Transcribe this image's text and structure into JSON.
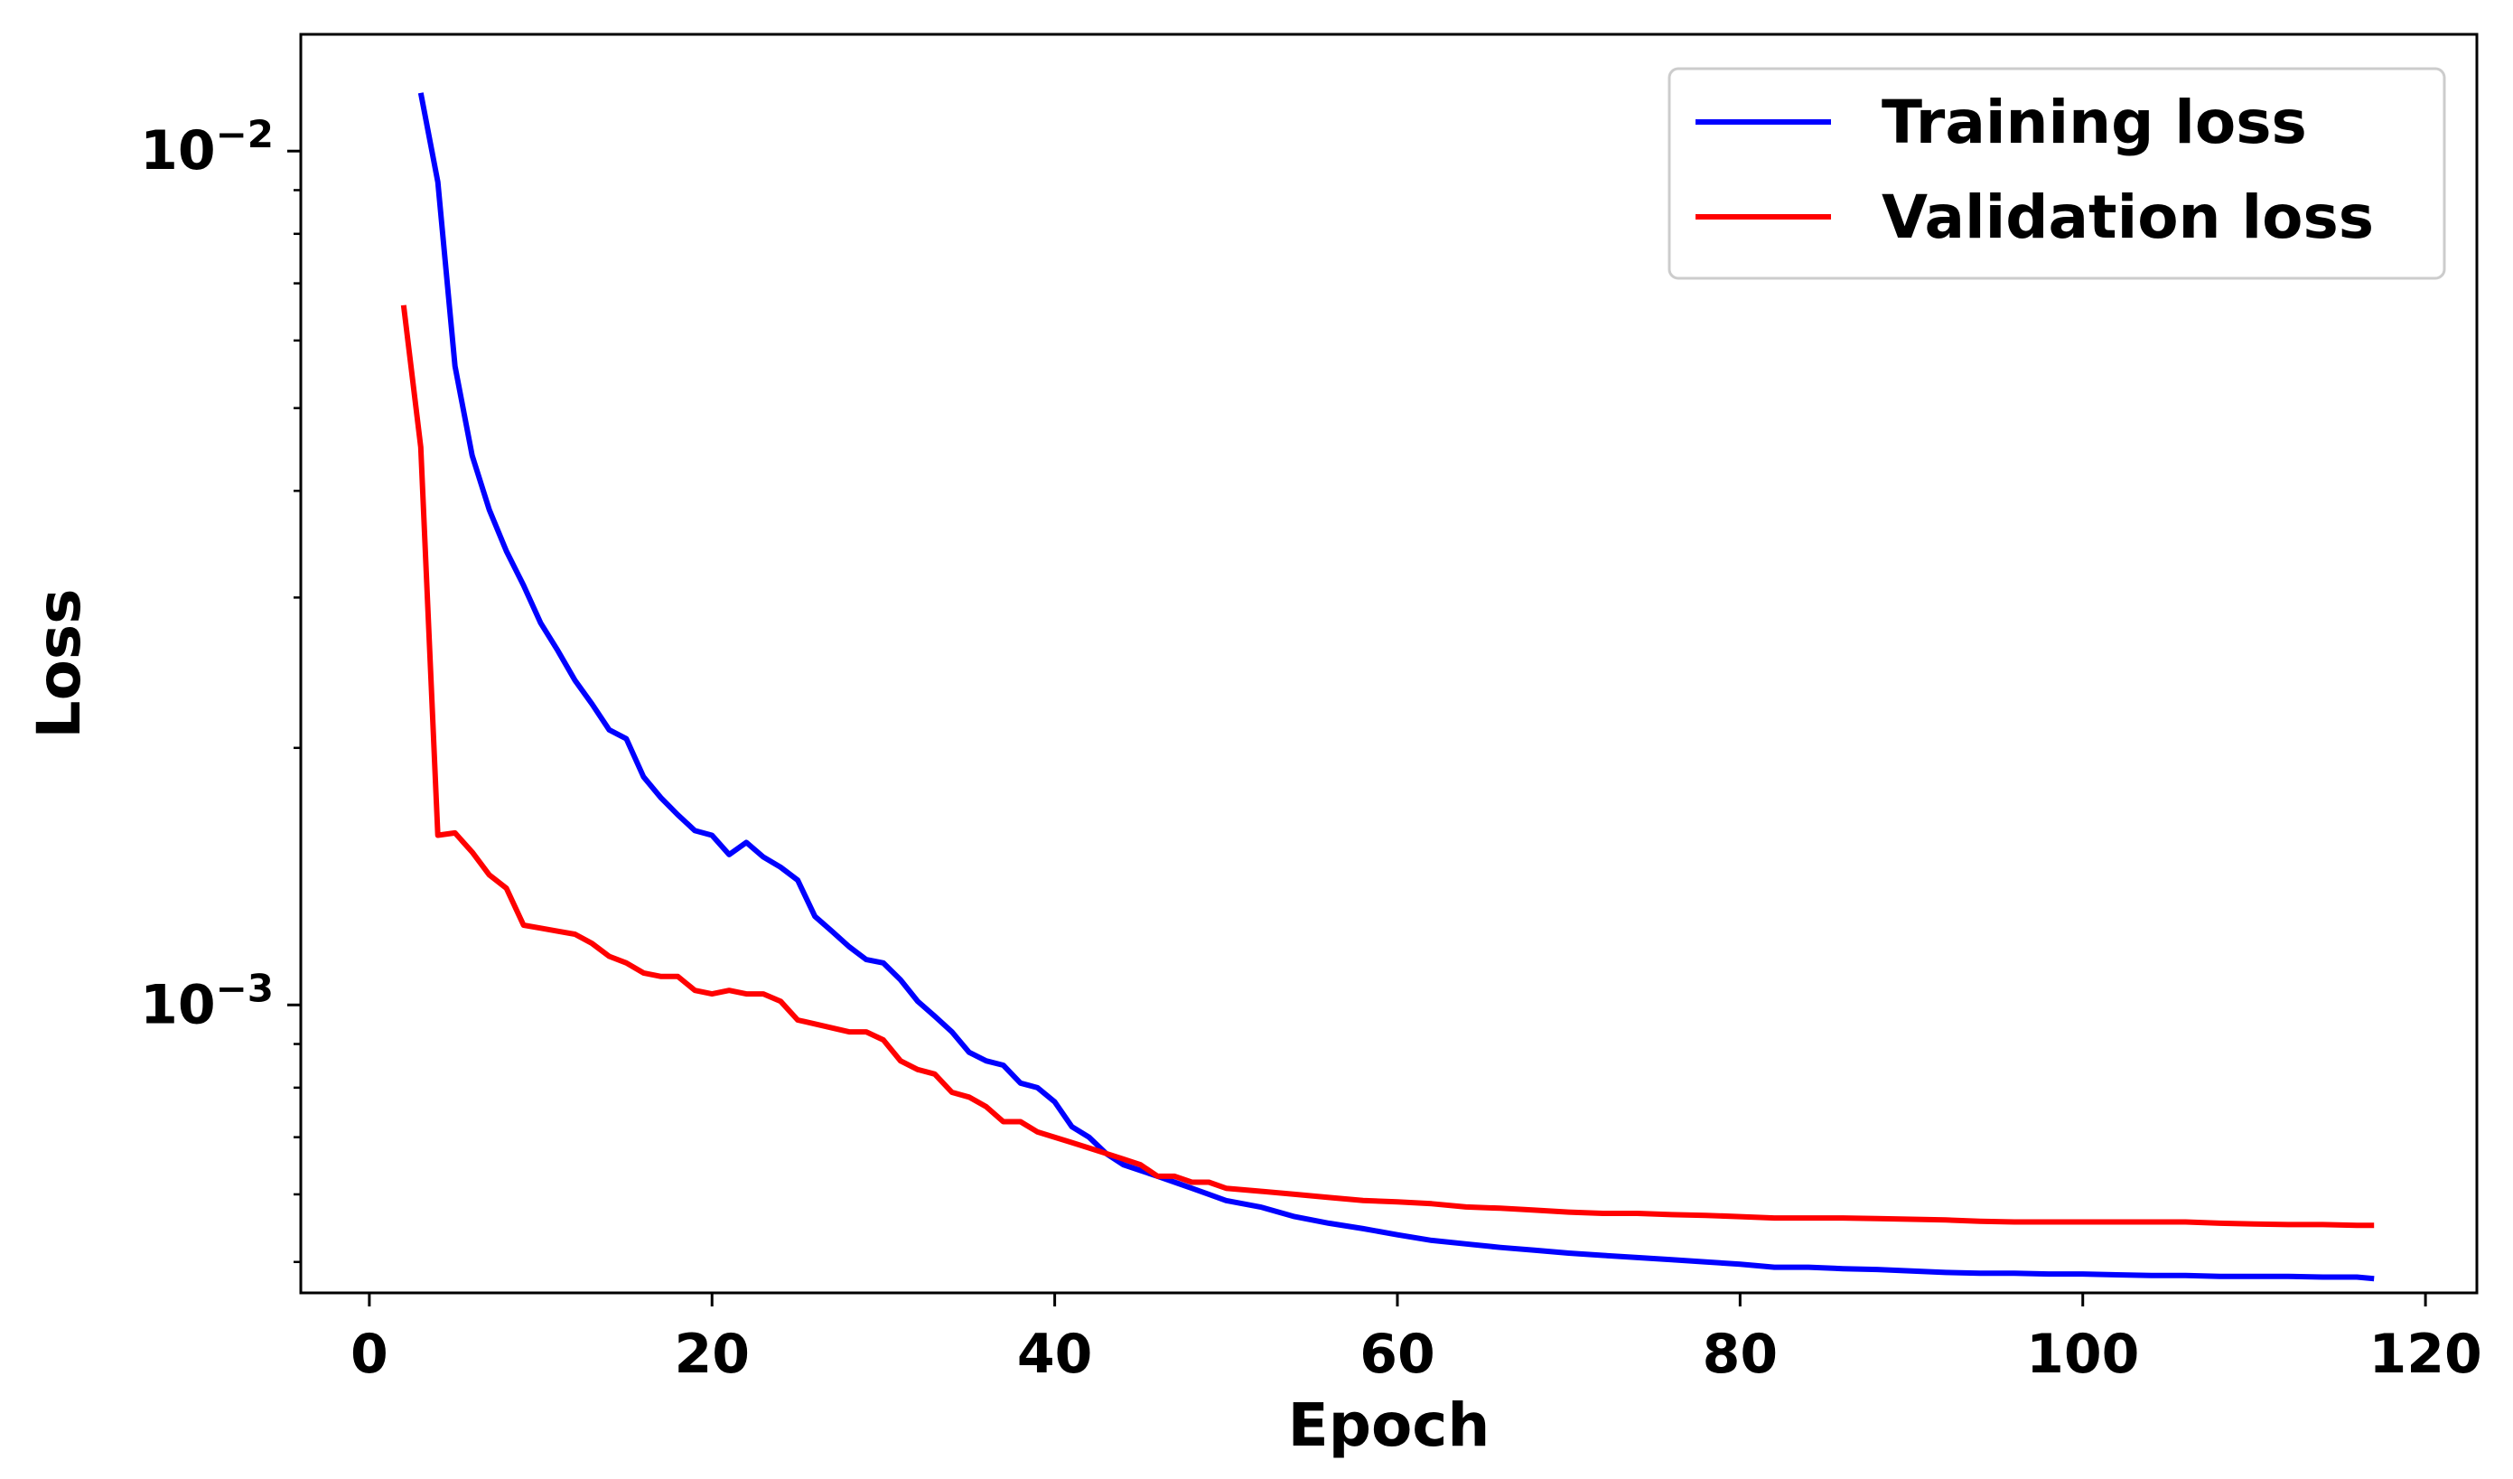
{
  "chart_data": {
    "type": "line",
    "title": "",
    "xlabel": "Epoch",
    "ylabel": "Loss",
    "yscale": "log",
    "xlim": [
      -4,
      123
    ],
    "ylim": [
      0.00046,
      0.0137
    ],
    "xticks": [
      0,
      20,
      40,
      60,
      80,
      100,
      120
    ],
    "xtick_labels": [
      "0",
      "20",
      "40",
      "60",
      "80",
      "100",
      "120"
    ],
    "yticks": [
      0.01,
      0.001
    ],
    "ytick_labels": [
      {
        "base": "10",
        "exp": "−2"
      },
      {
        "base": "10",
        "exp": "−3"
      }
    ],
    "yminor_ticks": [
      0.0005,
      0.0006,
      0.0007,
      0.0008,
      0.0009,
      0.002,
      0.003,
      0.004,
      0.005,
      0.006,
      0.007,
      0.008,
      0.009
    ],
    "legend_position": "top-right",
    "grid": false,
    "series": [
      {
        "name": "Training loss",
        "color": "#0000ff",
        "x": [
          3,
          4,
          5,
          6,
          7,
          8,
          9,
          10,
          11,
          12,
          13,
          14,
          15,
          16,
          17,
          18,
          19,
          20,
          21,
          22,
          23,
          24,
          25,
          26,
          27,
          28,
          29,
          30,
          31,
          32,
          33,
          34,
          35,
          36,
          37,
          38,
          39,
          40,
          41,
          42,
          43,
          44,
          45,
          46,
          47,
          48,
          49,
          50,
          52,
          54,
          56,
          58,
          60,
          62,
          64,
          66,
          68,
          70,
          72,
          74,
          76,
          78,
          80,
          82,
          84,
          86,
          88,
          90,
          92,
          94,
          96,
          98,
          100,
          102,
          104,
          106,
          108,
          110,
          112,
          114,
          116,
          117
        ],
        "y": [
          0.0117,
          0.0092,
          0.0056,
          0.0044,
          0.0038,
          0.0034,
          0.0031,
          0.0028,
          0.0026,
          0.0024,
          0.00225,
          0.0021,
          0.00205,
          0.00185,
          0.00175,
          0.00167,
          0.0016,
          0.00158,
          0.0015,
          0.00155,
          0.00149,
          0.00145,
          0.0014,
          0.00127,
          0.00122,
          0.00117,
          0.00113,
          0.00112,
          0.00107,
          0.00101,
          0.00097,
          0.00093,
          0.00088,
          0.00086,
          0.00085,
          0.00081,
          0.0008,
          0.00077,
          0.00072,
          0.0007,
          0.00067,
          0.00065,
          0.00064,
          0.00063,
          0.00062,
          0.00061,
          0.0006,
          0.00059,
          0.00058,
          0.000565,
          0.000555,
          0.000547,
          0.000538,
          0.00053,
          0.000525,
          0.00052,
          0.000516,
          0.000512,
          0.000509,
          0.000506,
          0.000503,
          0.0005,
          0.000497,
          0.000493,
          0.000493,
          0.000491,
          0.00049,
          0.000488,
          0.000486,
          0.000485,
          0.000485,
          0.000484,
          0.000484,
          0.000483,
          0.000482,
          0.000482,
          0.000481,
          0.000481,
          0.000481,
          0.00048,
          0.00048,
          0.000478
        ]
      },
      {
        "name": "Validation loss",
        "color": "#ff0000",
        "x": [
          2,
          3,
          4,
          5,
          6,
          7,
          8,
          9,
          10,
          11,
          12,
          13,
          14,
          15,
          16,
          17,
          18,
          19,
          20,
          21,
          22,
          23,
          24,
          25,
          26,
          27,
          28,
          29,
          30,
          31,
          32,
          33,
          34,
          35,
          36,
          37,
          38,
          39,
          40,
          41,
          42,
          43,
          44,
          45,
          46,
          47,
          48,
          49,
          50,
          52,
          54,
          56,
          58,
          60,
          62,
          64,
          66,
          68,
          70,
          72,
          74,
          76,
          78,
          80,
          82,
          84,
          86,
          88,
          90,
          92,
          94,
          96,
          98,
          100,
          102,
          104,
          106,
          108,
          110,
          112,
          114,
          116,
          117
        ],
        "y": [
          0.0066,
          0.0045,
          0.00158,
          0.00159,
          0.00151,
          0.00142,
          0.00137,
          0.00124,
          0.00123,
          0.00122,
          0.00121,
          0.00118,
          0.00114,
          0.00112,
          0.00109,
          0.00108,
          0.00108,
          0.00104,
          0.00103,
          0.00104,
          0.00103,
          0.00103,
          0.00101,
          0.00096,
          0.00095,
          0.00094,
          0.00093,
          0.00093,
          0.00091,
          0.00086,
          0.00084,
          0.00083,
          0.00079,
          0.00078,
          0.00076,
          0.00073,
          0.00073,
          0.00071,
          0.0007,
          0.00069,
          0.00068,
          0.00067,
          0.00066,
          0.00065,
          0.00063,
          0.00063,
          0.00062,
          0.00062,
          0.00061,
          0.000605,
          0.0006,
          0.000595,
          0.00059,
          0.000588,
          0.000585,
          0.00058,
          0.000578,
          0.000575,
          0.000572,
          0.00057,
          0.00057,
          0.000568,
          0.000567,
          0.000565,
          0.000563,
          0.000563,
          0.000563,
          0.000562,
          0.000561,
          0.00056,
          0.000558,
          0.000557,
          0.000557,
          0.000557,
          0.000557,
          0.000557,
          0.000557,
          0.000555,
          0.000554,
          0.000553,
          0.000553,
          0.000552,
          0.000552
        ]
      }
    ]
  }
}
